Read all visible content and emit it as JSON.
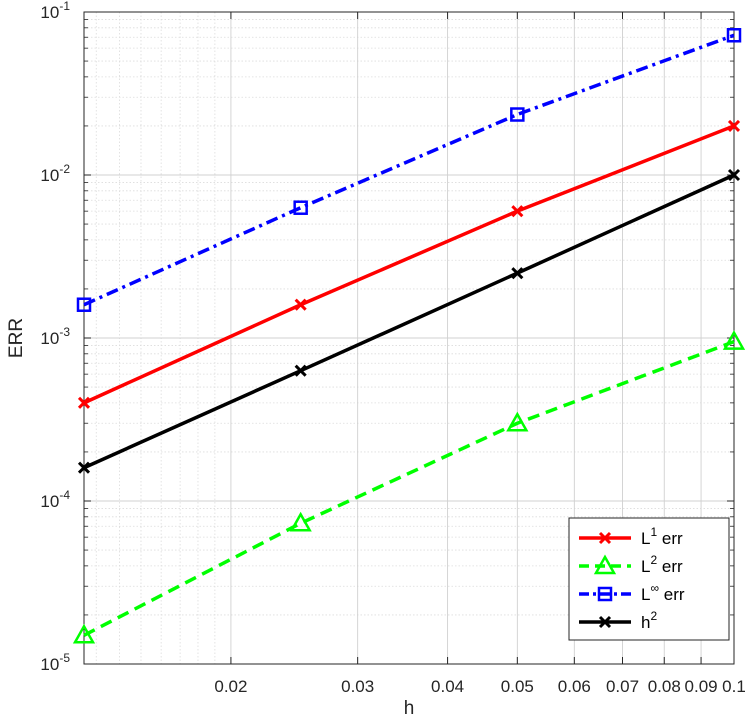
{
  "chart_data": {
    "type": "line",
    "xlabel": "h",
    "ylabel": "ERR",
    "xscale": "log",
    "yscale": "log",
    "xlim": [
      0.0125,
      0.1
    ],
    "ylim": [
      1e-05,
      0.1
    ],
    "grid": true,
    "legend_position": "bottom-right",
    "x": [
      0.0125,
      0.025,
      0.05,
      0.1
    ],
    "x_ticks": [
      0.02,
      0.03,
      0.04,
      0.05,
      0.06,
      0.07,
      0.08,
      0.09,
      0.1
    ],
    "x_tick_labels": [
      "0.02",
      "0.03",
      "0.04",
      "0.05",
      "0.06",
      "0.07",
      "0.08",
      "0.09",
      "0.1"
    ],
    "y_ticks": [
      1e-05,
      0.0001,
      0.001,
      0.01,
      0.1
    ],
    "y_tick_labels": [
      {
        "base": "10",
        "exp": "-5"
      },
      {
        "base": "10",
        "exp": "-4"
      },
      {
        "base": "10",
        "exp": "-3"
      },
      {
        "base": "10",
        "exp": "-2"
      },
      {
        "base": "10",
        "exp": "-1"
      }
    ],
    "series": [
      {
        "name_base": "L",
        "name_sup": "1",
        "name_tail": " err",
        "color": "#ff0000",
        "dash": "solid",
        "marker": "x",
        "values": [
          0.0004,
          0.0016,
          0.006,
          0.02
        ]
      },
      {
        "name_base": "L",
        "name_sup": "2",
        "name_tail": " err",
        "color": "#00ff00",
        "dash": "dashed",
        "marker": "triangle",
        "values": [
          1.5e-05,
          7.3e-05,
          0.0003,
          0.00095
        ]
      },
      {
        "name_base": "L",
        "name_sup": "∞",
        "name_tail": " err",
        "color": "#0000ff",
        "dash": "dashdot",
        "marker": "square",
        "values": [
          0.0016,
          0.0063,
          0.0235,
          0.072
        ]
      },
      {
        "name_base": "h",
        "name_sup": "2",
        "name_tail": "",
        "color": "#000000",
        "dash": "solid",
        "marker": "x",
        "values": [
          0.00016,
          0.00063,
          0.0025,
          0.01
        ]
      }
    ]
  }
}
